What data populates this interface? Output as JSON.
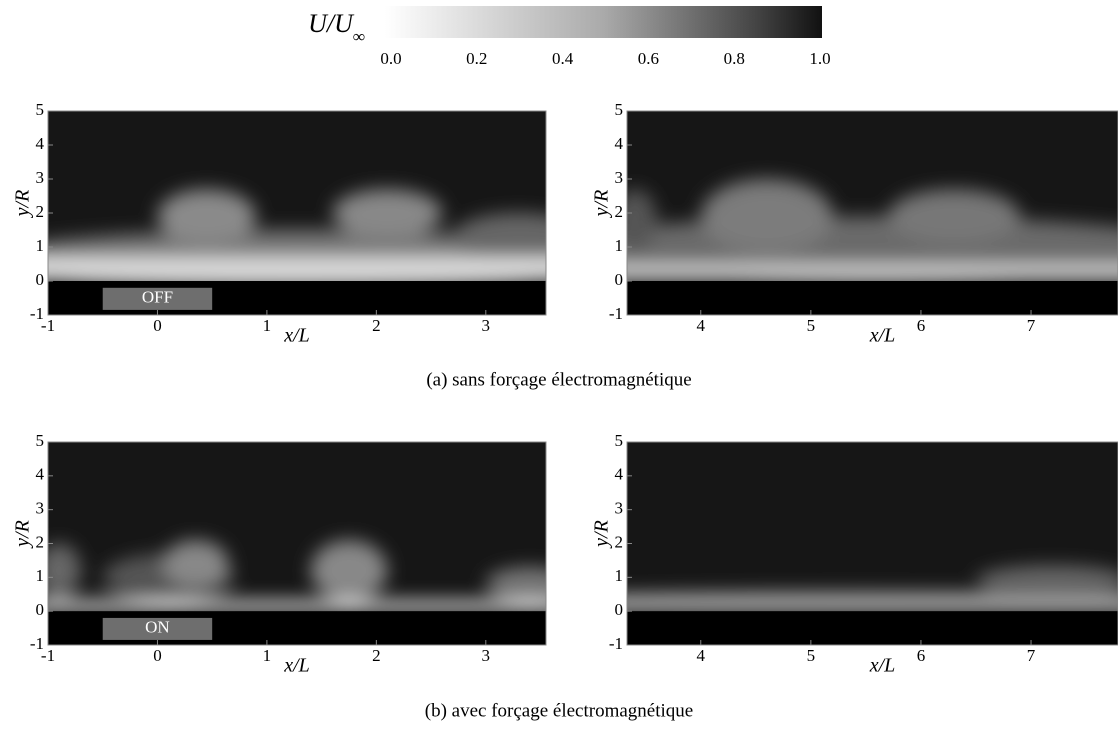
{
  "colorbar": {
    "title": "U/U",
    "subscript": "∞",
    "lim": [
      0,
      1
    ],
    "ticks": [
      {
        "value": 0,
        "label": "0.0"
      },
      {
        "value": 0.2,
        "label": "0.2"
      },
      {
        "value": 0.4,
        "label": "0.4"
      },
      {
        "value": 0.6,
        "label": "0.6"
      },
      {
        "value": 0.8,
        "label": "0.8"
      },
      {
        "value": 1,
        "label": "1.0"
      }
    ]
  },
  "captions": [
    "(a) sans forçage électromagnétique",
    "(b) avec forçage électromagnétique"
  ],
  "chart_data": [
    {
      "type": "heatmap",
      "xlabel": "x/L",
      "ylabel": "y/R",
      "xlim": [
        -1,
        3.55
      ],
      "ylim": [
        -1,
        5
      ],
      "xticks": [
        -1,
        0,
        1,
        2,
        3
      ],
      "yticks": [
        -1,
        0,
        1,
        2,
        3,
        4,
        5
      ],
      "label": "OFF"
    },
    {
      "type": "heatmap",
      "xlabel": "x/L",
      "ylabel": "y/R",
      "xlim": [
        3.33,
        7.79
      ],
      "ylim": [
        -1,
        5
      ],
      "xticks": [
        4,
        5,
        6,
        7
      ],
      "yticks": [
        -1,
        0,
        1,
        2,
        3,
        4,
        5
      ]
    },
    {
      "type": "heatmap",
      "xlabel": "x/L",
      "ylabel": "y/R",
      "xlim": [
        -1,
        3.55
      ],
      "ylim": [
        -1,
        5
      ],
      "xticks": [
        -1,
        0,
        1,
        2,
        3
      ],
      "yticks": [
        -1,
        0,
        1,
        2,
        3,
        4,
        5
      ],
      "label": "ON"
    },
    {
      "type": "heatmap",
      "xlabel": "x/L",
      "ylabel": "y/R",
      "xlim": [
        3.33,
        7.79
      ],
      "ylim": [
        -1,
        5
      ],
      "xticks": [
        4,
        5,
        6,
        7
      ],
      "yticks": [
        -1,
        0,
        1,
        2,
        3,
        4,
        5
      ]
    }
  ]
}
